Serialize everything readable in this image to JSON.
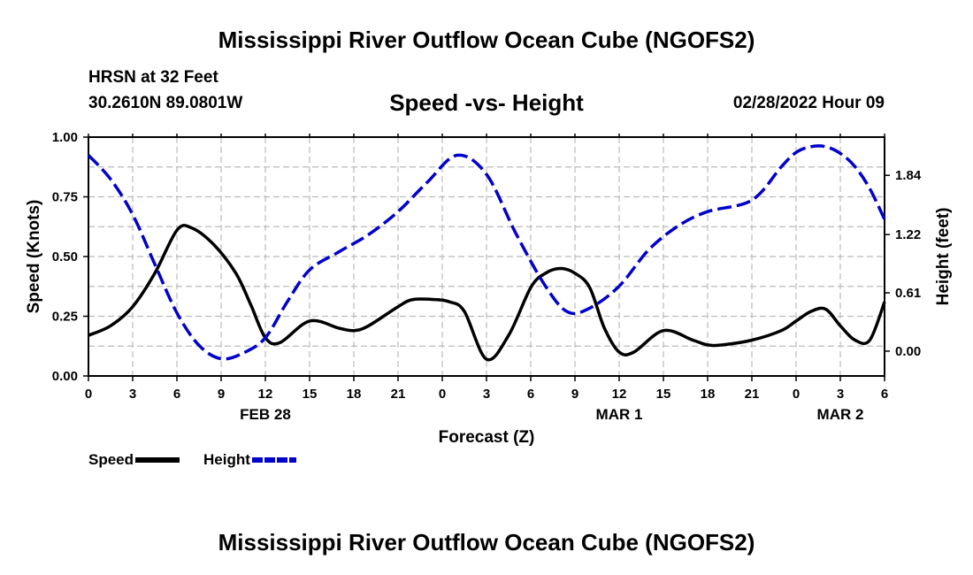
{
  "header": {
    "title": "Mississippi River Outflow Ocean Cube (NGOFS2)",
    "station": "HRSN at 32 Feet",
    "coords": "30.2610N  89.0801W",
    "subtitle": "Speed -vs- Height",
    "datetime": "02/28/2022 Hour 09"
  },
  "footer": {
    "title": "Mississippi River Outflow Ocean Cube (NGOFS2)"
  },
  "legend": {
    "speed_label": "Speed",
    "height_label": "Height"
  },
  "chart_data": {
    "type": "line",
    "title": "Speed -vs- Height",
    "xlabel": "Forecast (Z)",
    "ylabel": "Speed (Knots)",
    "y2label": "Height (feet)",
    "xlim": [
      0,
      54
    ],
    "ylim": [
      0,
      1.0
    ],
    "y2lim": [
      -0.26,
      2.24
    ],
    "grid": true,
    "legend_position": "bottom-left",
    "x_tick_values": [
      0,
      3,
      6,
      9,
      12,
      15,
      18,
      21,
      24,
      27,
      30,
      33,
      36,
      39,
      42,
      45,
      48,
      51,
      54
    ],
    "x_tick_labels": [
      "0",
      "3",
      "6",
      "9",
      "12",
      "15",
      "18",
      "21",
      "0",
      "3",
      "6",
      "9",
      "12",
      "15",
      "18",
      "21",
      "0",
      "3",
      "6"
    ],
    "day_labels": [
      {
        "x": 12,
        "label": "FEB 28"
      },
      {
        "x": 36,
        "label": "MAR 1"
      },
      {
        "x": 51,
        "label": "MAR 2"
      }
    ],
    "y_ticks": [
      0,
      0.25,
      0.5,
      0.75,
      1.0
    ],
    "y_tick_labels": [
      "0.00",
      "0.25",
      "0.50",
      "0.75",
      "1.00"
    ],
    "y2_ticks": [
      0.0,
      0.61,
      1.22,
      1.84
    ],
    "y2_tick_labels": [
      "0.00",
      "0.61",
      "1.22",
      "1.84"
    ],
    "series": [
      {
        "name": "Speed",
        "axis": "left",
        "color": "#000000",
        "dash": "solid",
        "x": [
          0,
          1.5,
          3,
          4.5,
          6,
          7,
          8.5,
          10,
          11,
          12,
          13,
          15,
          17,
          18,
          19,
          21,
          22,
          23.5,
          24.5,
          25.5,
          27,
          28.5,
          30,
          31,
          32,
          33,
          34,
          35,
          36,
          37,
          39,
          41,
          42,
          43,
          45,
          47,
          48,
          49,
          50,
          51,
          52,
          53,
          54
        ],
        "values": [
          0.17,
          0.21,
          0.29,
          0.43,
          0.61,
          0.62,
          0.55,
          0.43,
          0.3,
          0.16,
          0.14,
          0.23,
          0.2,
          0.19,
          0.21,
          0.29,
          0.32,
          0.32,
          0.31,
          0.27,
          0.07,
          0.17,
          0.37,
          0.43,
          0.45,
          0.43,
          0.37,
          0.2,
          0.1,
          0.1,
          0.19,
          0.15,
          0.13,
          0.13,
          0.15,
          0.19,
          0.23,
          0.27,
          0.28,
          0.21,
          0.15,
          0.15,
          0.31
        ]
      },
      {
        "name": "Height",
        "axis": "right",
        "color": "#0000cc",
        "dash": "dashed",
        "x": [
          0,
          1.5,
          3,
          4.5,
          6,
          7.5,
          9,
          10.5,
          12,
          13.5,
          15,
          17,
          19,
          21,
          23,
          25,
          27,
          29,
          31,
          32.5,
          34,
          36,
          38,
          40,
          42,
          45,
          47,
          48,
          49,
          50,
          51,
          52,
          53,
          54
        ],
        "values": [
          2.05,
          1.8,
          1.43,
          0.91,
          0.4,
          0.06,
          -0.08,
          -0.02,
          0.14,
          0.52,
          0.85,
          1.04,
          1.22,
          1.46,
          1.77,
          2.05,
          1.85,
          1.23,
          0.68,
          0.41,
          0.45,
          0.68,
          1.06,
          1.31,
          1.46,
          1.58,
          1.93,
          2.08,
          2.14,
          2.14,
          2.07,
          1.93,
          1.7,
          1.38
        ]
      }
    ]
  }
}
